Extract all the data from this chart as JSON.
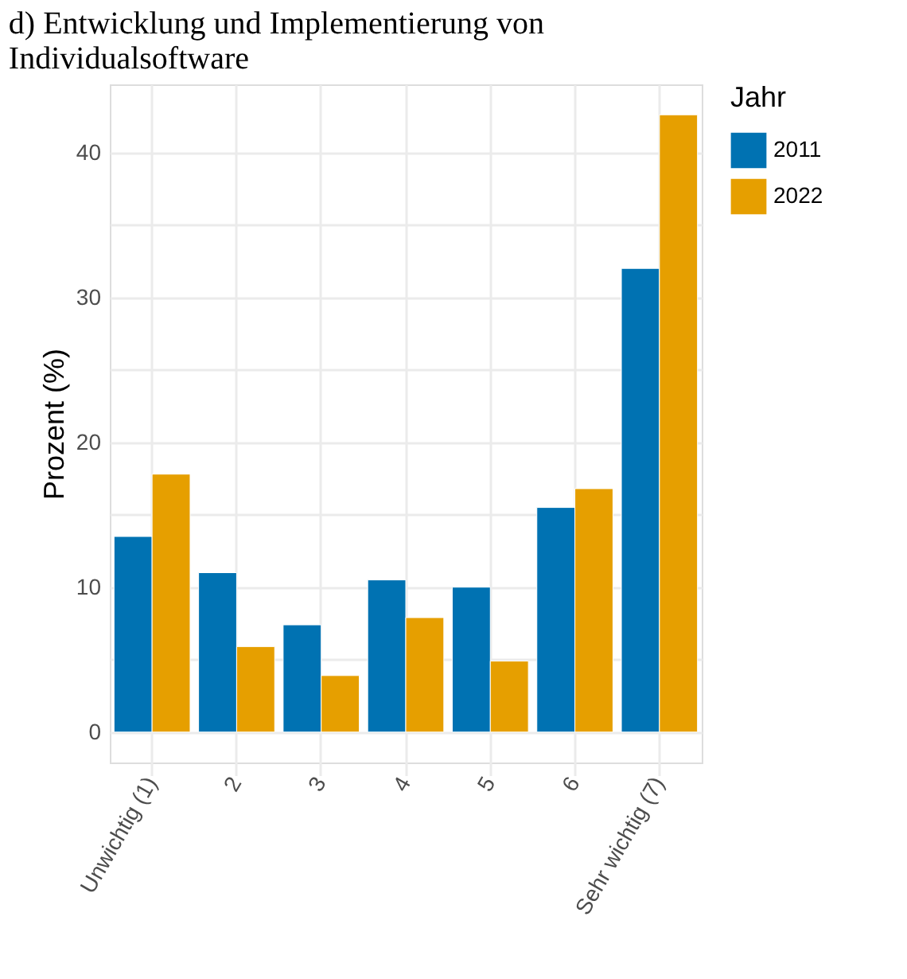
{
  "chart_data": {
    "type": "bar",
    "title": "d)   Entwicklung und Implementierung von\nIndividualsoftware",
    "ylabel": "Prozent (%)",
    "legend_title": "Jahr",
    "categories": [
      "Unwichtig (1)",
      "2",
      "3",
      "4",
      "5",
      "6",
      "Sehr wichtig (7)"
    ],
    "series": [
      {
        "name": "2011",
        "color": "#0072b2",
        "values": [
          13.5,
          11.0,
          7.4,
          10.5,
          10.0,
          15.5,
          32.0
        ]
      },
      {
        "name": "2022",
        "color": "#e69f00",
        "values": [
          17.8,
          5.9,
          3.9,
          7.9,
          4.9,
          16.8,
          42.6
        ]
      }
    ],
    "ylim": [
      -2.1,
      44.7
    ],
    "yticks": [
      0,
      {
        "value": 5,
        "label": null
      },
      10,
      {
        "value": 15,
        "label": null
      },
      20,
      {
        "value": 25,
        "label": null
      },
      30,
      {
        "value": 35,
        "label": null
      },
      40
    ],
    "grid": true,
    "legend": "right"
  }
}
